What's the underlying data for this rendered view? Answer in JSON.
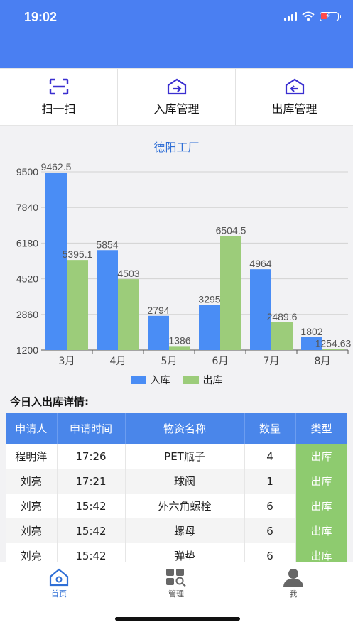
{
  "status": {
    "time": "19:02"
  },
  "actions": [
    {
      "label": "扫一扫",
      "icon": "scan-icon"
    },
    {
      "label": "入库管理",
      "icon": "inbound-icon"
    },
    {
      "label": "出库管理",
      "icon": "outbound-icon"
    }
  ],
  "colors": {
    "accent": "#4a7ff2",
    "in": "#4a8df5",
    "out": "#9ccc7a",
    "type_bg": "#8ecb6f"
  },
  "chart_data": {
    "type": "bar",
    "title": "德阳工厂",
    "categories": [
      "3月",
      "4月",
      "5月",
      "6月",
      "7月",
      "8月"
    ],
    "series": [
      {
        "name": "入库",
        "values": [
          9462.5,
          5854,
          2794,
          3295,
          4964,
          1802
        ],
        "labels": [
          "9462.5",
          "5854",
          "2794",
          "3295",
          "4964",
          "1802"
        ]
      },
      {
        "name": "出库",
        "values": [
          5395.1,
          4503,
          1386,
          6504.5,
          2489.6,
          1254.63
        ],
        "labels": [
          "5395.1",
          "4503",
          "1386",
          "6504.5",
          "2489.6",
          "1254.63"
        ]
      }
    ],
    "yticks": [
      "1200",
      "2860",
      "4520",
      "6180",
      "7840",
      "9500"
    ],
    "ylim": [
      1200,
      9500
    ],
    "grid": true,
    "legend": "bottom"
  },
  "section_title": "今日入出库详情:",
  "table": {
    "headers": [
      "申请人",
      "申请时间",
      "物资名称",
      "数量",
      "类型"
    ],
    "rows": [
      [
        "程明洋",
        "17:26",
        "PET瓶子",
        "4",
        "出库"
      ],
      [
        "刘亮",
        "17:21",
        "球阀",
        "1",
        "出库"
      ],
      [
        "刘亮",
        "15:42",
        "外六角螺栓",
        "6",
        "出库"
      ],
      [
        "刘亮",
        "15:42",
        "螺母",
        "6",
        "出库"
      ],
      [
        "刘亮",
        "15:42",
        "弹垫",
        "6",
        "出库"
      ]
    ]
  },
  "tabs": [
    {
      "label": "首页",
      "icon": "home-icon",
      "active": true
    },
    {
      "label": "管理",
      "icon": "manage-icon",
      "active": false
    },
    {
      "label": "我",
      "icon": "user-icon",
      "active": false
    }
  ]
}
